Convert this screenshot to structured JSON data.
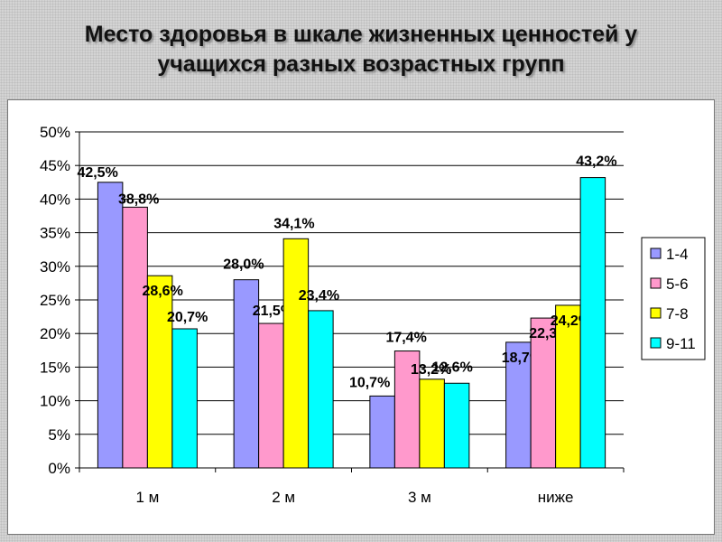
{
  "title": {
    "line1": "Место здоровья в шкале жизненных ценностей у",
    "line2": "учащихся разных возрастных групп"
  },
  "chart_data": {
    "type": "bar",
    "title": "Место здоровья в шкале жизненных ценностей у учащихся разных возрастных групп",
    "categories": [
      "1 м",
      "2 м",
      "3 м",
      "ниже"
    ],
    "series": [
      {
        "name": "1-4",
        "color": "#9999ff",
        "values": [
          42.5,
          28.0,
          10.7,
          18.7
        ],
        "labels": [
          "42,5%",
          "28,0%",
          "10,7%",
          "18,7%"
        ]
      },
      {
        "name": "5-6",
        "color": "#ff99cc",
        "values": [
          38.8,
          21.5,
          17.4,
          22.3
        ],
        "labels": [
          "38,8%",
          "21,5%",
          "17,4%",
          "22,3%"
        ]
      },
      {
        "name": "7-8",
        "color": "#ffff00",
        "values": [
          28.6,
          34.1,
          13.2,
          24.2
        ],
        "labels": [
          "28,6%",
          "34,1%",
          "13,2%",
          "24,2%"
        ]
      },
      {
        "name": "9-11",
        "color": "#00ffff",
        "values": [
          20.7,
          23.4,
          12.6,
          43.2
        ],
        "labels": [
          "20,7%",
          "23,4%",
          "12,6%",
          "43,2%"
        ]
      }
    ],
    "y_ticks": [
      "0%",
      "5%",
      "10%",
      "15%",
      "20%",
      "25%",
      "30%",
      "35%",
      "40%",
      "45%",
      "50%"
    ],
    "ylim": [
      0,
      50
    ],
    "grid": true,
    "legend": "right"
  }
}
